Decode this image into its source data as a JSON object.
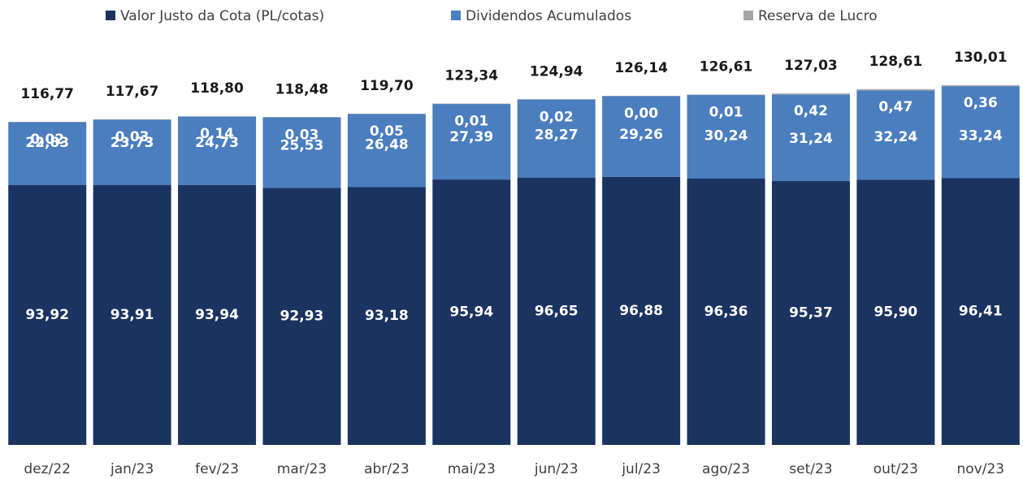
{
  "chart_data": {
    "type": "stacked_bar",
    "categories": [
      "dez/22",
      "jan/23",
      "fev/23",
      "mar/23",
      "abr/23",
      "mai/23",
      "jun/23",
      "jul/23",
      "ago/23",
      "set/23",
      "out/23",
      "nov/23"
    ],
    "series": [
      {
        "name": "Valor Justo da Cota (PL/cotas)",
        "color": "#1b3360",
        "values": [
          93.92,
          93.91,
          93.94,
          92.93,
          93.18,
          95.94,
          96.65,
          96.88,
          96.36,
          95.37,
          95.9,
          96.41
        ],
        "value_labels": [
          "93,92",
          "93,91",
          "93,94",
          "92,93",
          "93,18",
          "95,94",
          "96,65",
          "96,88",
          "96,36",
          "95,37",
          "95,90",
          "96,41"
        ]
      },
      {
        "name": "Dividendos Acumulados",
        "color": "#4a7ebf",
        "values": [
          22.83,
          23.73,
          24.73,
          25.53,
          26.48,
          27.39,
          28.27,
          29.26,
          30.24,
          31.24,
          32.24,
          33.24
        ],
        "value_labels": [
          "22,83",
          "23,73",
          "24,73",
          "25,53",
          "26,48",
          "27,39",
          "28,27",
          "29,26",
          "30,24",
          "31,24",
          "32,24",
          "33,24"
        ]
      },
      {
        "name": "Reserva de Lucro",
        "color": "#a6a6a6",
        "values": [
          0.02,
          0.03,
          0.14,
          0.03,
          0.05,
          0.01,
          0.02,
          0.0,
          0.01,
          0.42,
          0.47,
          0.36
        ],
        "value_labels": [
          "0,02",
          "0,03",
          "0,14",
          "0,03",
          "0,05",
          "0,01",
          "0,02",
          "0,00",
          "0,01",
          "0,42",
          "0,47",
          "0,36"
        ]
      }
    ],
    "totals": [
      116.77,
      117.67,
      118.8,
      118.48,
      119.7,
      123.34,
      124.94,
      126.14,
      126.61,
      127.03,
      128.61,
      130.01
    ],
    "total_labels": [
      "116,77",
      "117,67",
      "118,80",
      "118,48",
      "119,70",
      "123,34",
      "124,94",
      "126,14",
      "126,61",
      "127,03",
      "128,61",
      "130,01"
    ],
    "ylim": [
      0,
      135
    ]
  }
}
